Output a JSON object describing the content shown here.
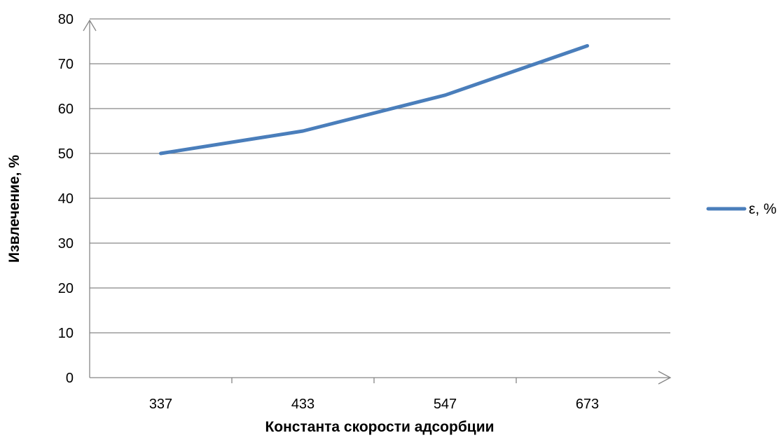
{
  "chart_data": {
    "type": "line",
    "categories": [
      "337",
      "433",
      "547",
      "673"
    ],
    "series": [
      {
        "name": "ε, %",
        "values": [
          50,
          55,
          63,
          74
        ],
        "color": "#4a7ebb"
      }
    ],
    "xlabel": "Константа скорости адсорбции",
    "ylabel": "Извлечение, %",
    "ylim": [
      0,
      80
    ],
    "yticks": [
      "0",
      "10",
      "20",
      "30",
      "40",
      "50",
      "60",
      "70",
      "80"
    ],
    "grid": "horizontal",
    "legend_position": "right",
    "axis_arrows": true,
    "colors": {
      "series": "#4a7ebb",
      "grid": "#868686",
      "axis": "#868686"
    }
  }
}
